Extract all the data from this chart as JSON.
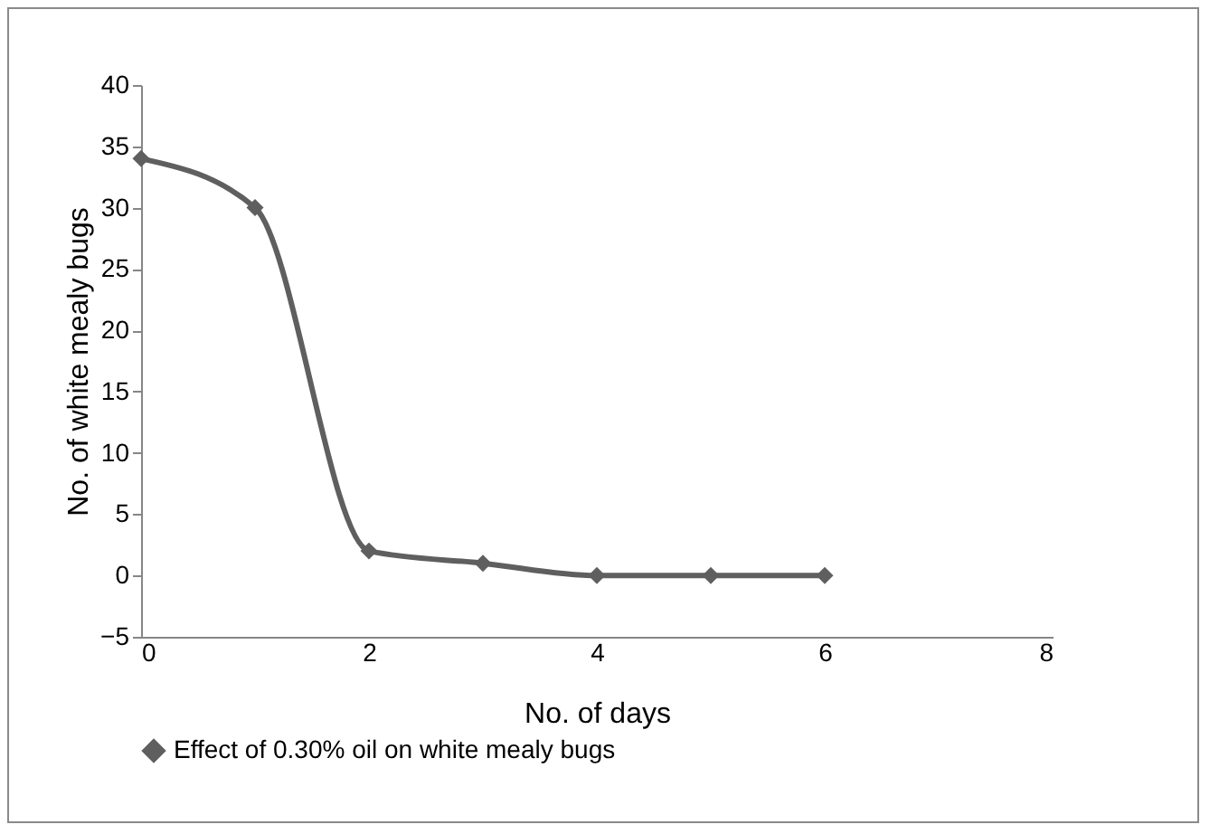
{
  "chart_data": {
    "type": "line",
    "xlabel": "No. of days",
    "ylabel": "No. of white mealy bugs",
    "x": [
      0,
      1,
      2,
      3,
      4,
      5,
      6
    ],
    "series": [
      {
        "name": "Effect of 0.30% oil on white mealy bugs",
        "color": "#5f5f5f",
        "values": [
          34,
          30,
          2,
          1,
          0,
          0,
          0
        ]
      }
    ],
    "xlim": [
      0,
      8
    ],
    "xticks": [
      0,
      2,
      4,
      6,
      8
    ],
    "ylim": [
      -5,
      40
    ],
    "yticks": [
      -5,
      0,
      5,
      10,
      15,
      20,
      25,
      30,
      35,
      40
    ],
    "legend": "bottom",
    "marker": "diamond",
    "line_style": "solid"
  }
}
